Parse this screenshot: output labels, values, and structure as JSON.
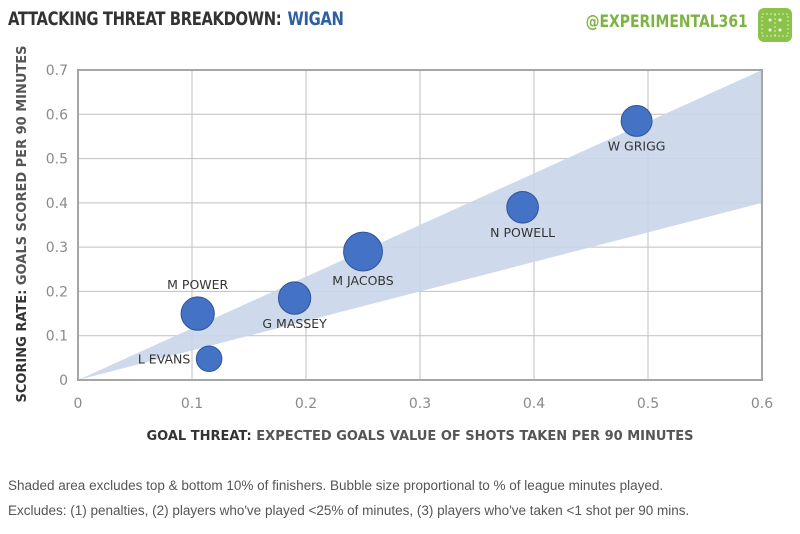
{
  "header": {
    "title_prefix": "ATTACKING THREAT BREAKDOWN:",
    "title_team": "WIGAN",
    "handle": "@EXPERIMENTAL361",
    "logo_icon": "pitch-icon"
  },
  "colors": {
    "bubble": "#4472c4",
    "band": "#c9d6ea",
    "team": "#2e5fa3",
    "handle": "#7cb342"
  },
  "chart_data": {
    "type": "scatter",
    "xlabel_bold": "GOAL THREAT:",
    "xlabel_rest": "EXPECTED GOALS VALUE OF SHOTS TAKEN PER 90 MINUTES",
    "ylabel_bold": "SCORING RATE:",
    "ylabel_rest": "GOALS SCORED PER 90 MINUTES",
    "xlim": [
      0,
      0.6
    ],
    "ylim": [
      0,
      0.7
    ],
    "xticks": [
      "0",
      "0.1",
      "0.2",
      "0.3",
      "0.4",
      "0.5",
      "0.6"
    ],
    "yticks": [
      "0",
      "0.1",
      "0.2",
      "0.3",
      "0.4",
      "0.5",
      "0.6",
      "0.7"
    ],
    "grid": true,
    "band": {
      "upper_slope": 1.1667,
      "lower_slope": 0.6667
    },
    "points": [
      {
        "name": "W GRIGG",
        "x": 0.49,
        "y": 0.585,
        "size": 0.62,
        "label_pos": "below"
      },
      {
        "name": "N POWELL",
        "x": 0.39,
        "y": 0.39,
        "size": 0.65,
        "label_pos": "below"
      },
      {
        "name": "M JACOBS",
        "x": 0.25,
        "y": 0.29,
        "size": 0.95,
        "label_pos": "below"
      },
      {
        "name": "G MASSEY",
        "x": 0.19,
        "y": 0.185,
        "size": 0.68,
        "label_pos": "below"
      },
      {
        "name": "M POWER",
        "x": 0.105,
        "y": 0.15,
        "size": 0.72,
        "label_pos": "above"
      },
      {
        "name": "L EVANS",
        "x": 0.115,
        "y": 0.048,
        "size": 0.4,
        "label_pos": "left"
      }
    ]
  },
  "footer": {
    "line1": "Shaded area excludes top & bottom 10% of finishers. Bubble size proportional to % of league minutes played.",
    "line2": "Excludes: (1) penalties, (2) players who've played <25% of minutes, (3) players who've taken <1 shot per 90 mins."
  }
}
